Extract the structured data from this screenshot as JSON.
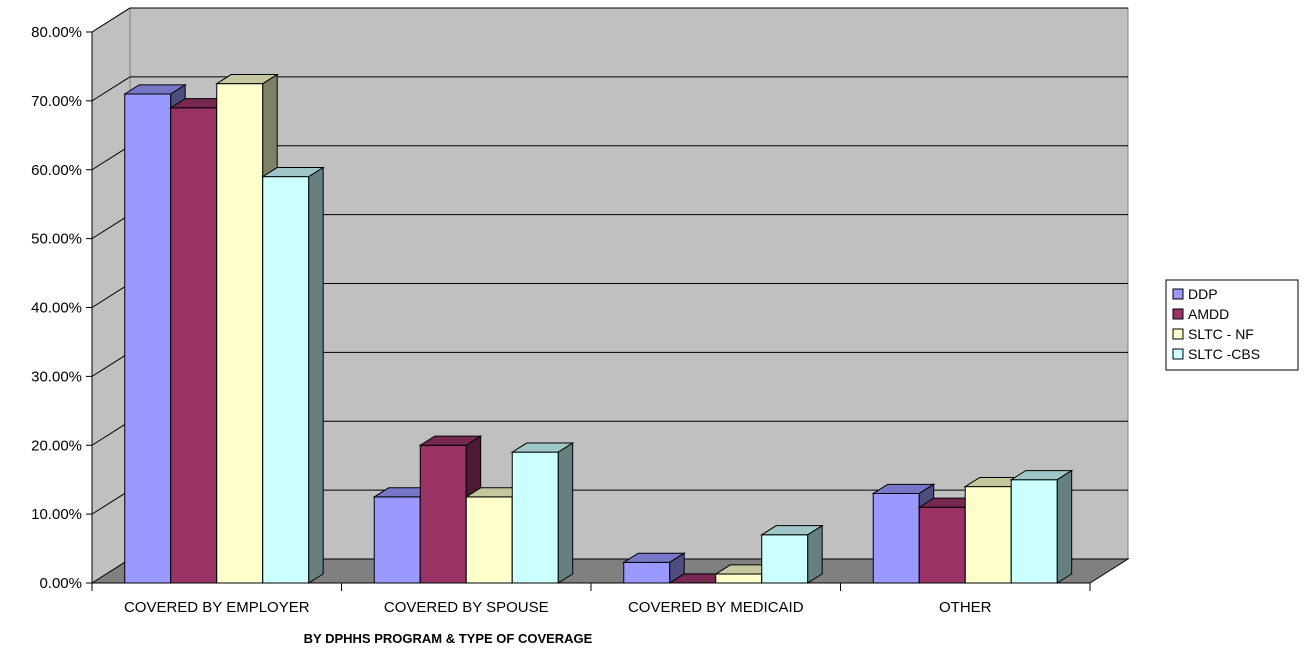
{
  "chart_data": {
    "type": "bar",
    "title": "",
    "xlabel": "BY DPHHS  PROGRAM & TYPE OF COVERAGE",
    "ylabel": "",
    "ylim": [
      0,
      0.8
    ],
    "yticks": [
      0,
      0.1,
      0.2,
      0.3,
      0.4,
      0.5,
      0.6,
      0.7,
      0.8
    ],
    "ytick_labels": [
      "0.00%",
      "10.00%",
      "20.00%",
      "30.00%",
      "40.00%",
      "50.00%",
      "60.00%",
      "70.00%",
      "80.00%"
    ],
    "grid": true,
    "three_d": true,
    "legend_position": "right",
    "categories": [
      "COVERED BY EMPLOYER",
      "COVERED BY SPOUSE",
      "COVERED BY MEDICAID",
      "OTHER"
    ],
    "series": [
      {
        "name": "DDP",
        "values": [
          0.71,
          0.125,
          0.03,
          0.13
        ],
        "color": "#9999ff"
      },
      {
        "name": "AMDD",
        "values": [
          0.69,
          0.2,
          0.0,
          0.11
        ],
        "color": "#993366"
      },
      {
        "name": "SLTC - NF",
        "values": [
          0.725,
          0.125,
          0.013,
          0.14
        ],
        "color": "#ffffcc"
      },
      {
        "name": "SLTC -CBS",
        "values": [
          0.59,
          0.19,
          0.07,
          0.15
        ],
        "color": "#ccffff"
      }
    ],
    "colors": {
      "wall": "#c0c0c0",
      "floor": "#808080",
      "gridline": "#000000"
    }
  }
}
